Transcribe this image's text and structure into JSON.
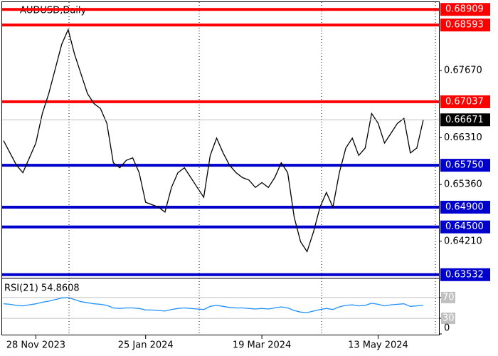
{
  "chart_data": [
    {
      "type": "line",
      "title": "AUDUSD,Daily",
      "categories": [
        null,
        null,
        null,
        null,
        null,
        "28 Nov 2023",
        null,
        null,
        null,
        null,
        null,
        null,
        null,
        null,
        null,
        null,
        null,
        null,
        null,
        null,
        null,
        null,
        "25 Jan 2024",
        null,
        null,
        null,
        null,
        null,
        null,
        null,
        null,
        null,
        null,
        null,
        null,
        null,
        null,
        null,
        null,
        null,
        "19 Mar 2024",
        null,
        null,
        null,
        null,
        null,
        null,
        null,
        null,
        null,
        null,
        null,
        null,
        null,
        null,
        null,
        null,
        null,
        "13 May 2024",
        null,
        null,
        null,
        null,
        null,
        null,
        null
      ],
      "series": [
        {
          "color": "#000000",
          "values": [
            0.6625,
            0.66,
            0.6575,
            0.656,
            0.659,
            0.662,
            0.668,
            0.672,
            0.677,
            0.682,
            0.685,
            0.68,
            0.676,
            0.672,
            0.67,
            0.669,
            0.666,
            0.658,
            0.657,
            0.6585,
            0.659,
            0.656,
            0.65,
            0.6495,
            0.649,
            0.648,
            0.653,
            0.656,
            0.657,
            0.655,
            0.653,
            0.651,
            0.6595,
            0.663,
            0.66,
            0.6575,
            0.656,
            0.655,
            0.6545,
            0.653,
            0.654,
            0.653,
            0.655,
            0.658,
            0.656,
            0.647,
            0.642,
            0.64,
            0.644,
            0.649,
            0.652,
            0.649,
            0.656,
            0.661,
            0.663,
            0.6595,
            0.661,
            0.668,
            0.666,
            0.662,
            0.664,
            0.666,
            0.667,
            0.66,
            0.661,
            0.6667
          ]
        }
      ],
      "ylim": [
        0.635,
        0.691
      ],
      "yticks": [
        {
          "value": 0.6767,
          "label": "0.67670"
        },
        {
          "value": 0.6631,
          "label": "0.66310"
        },
        {
          "value": 0.6536,
          "label": "0.65360"
        },
        {
          "value": 0.6421,
          "label": "0.64210"
        }
      ],
      "levels": [
        {
          "value": 0.68909,
          "color": "#ff0000"
        },
        {
          "value": 0.68593,
          "color": "#ff0000"
        },
        {
          "value": 0.67037,
          "color": "#ff0000"
        },
        {
          "value": 0.6575,
          "label": "0.65750",
          "color": "#0000cc"
        },
        {
          "value": 0.649,
          "label": "0.64900",
          "color": "#0000cc"
        },
        {
          "value": 0.645,
          "label": "0.64500",
          "color": "#0000cc"
        },
        {
          "value": 0.63532,
          "color": "#0000cc"
        }
      ],
      "last_price": 0.66671
    },
    {
      "type": "line",
      "title": "RSI(21) 54.8608",
      "series": [
        {
          "color": "#1e90ff",
          "values": [
            58,
            57,
            55,
            54,
            56,
            58,
            61,
            63,
            66,
            69,
            70,
            66,
            62,
            60,
            58,
            57,
            55,
            50,
            49,
            50,
            50,
            49,
            46,
            46,
            45,
            44,
            47,
            49,
            50,
            49,
            48,
            47,
            53,
            55,
            53,
            51,
            50,
            50,
            49,
            48,
            49,
            48,
            50,
            52,
            50,
            45,
            42,
            41,
            44,
            47,
            49,
            47,
            52,
            55,
            56,
            54,
            55,
            59,
            57,
            54,
            56,
            57,
            58,
            53,
            54,
            55
          ]
        }
      ],
      "ylim": [
        0,
        100
      ],
      "yticks": [
        70,
        30,
        0
      ]
    }
  ]
}
